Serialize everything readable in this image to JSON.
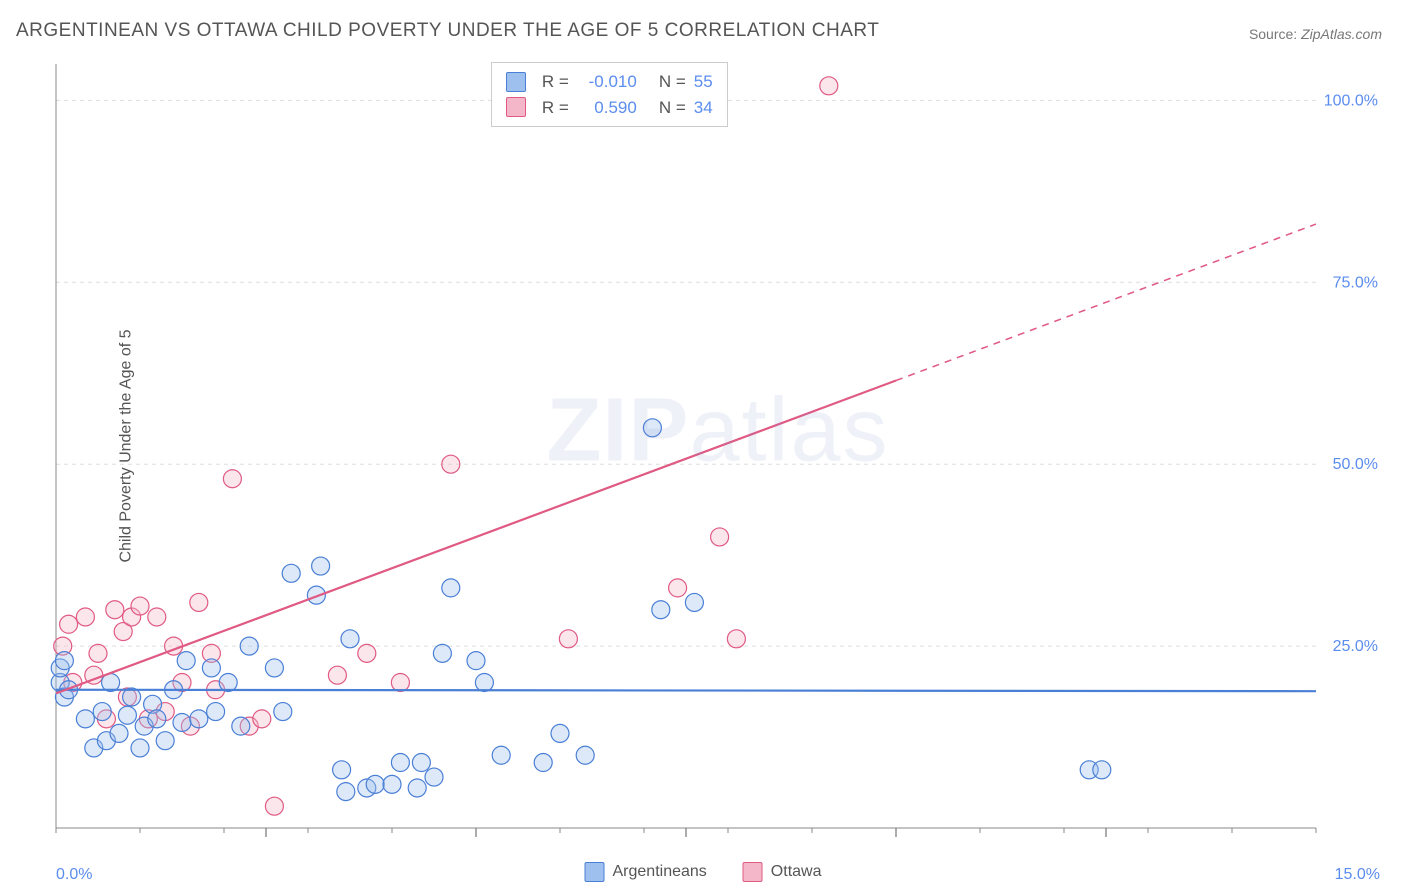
{
  "title": "ARGENTINEAN VS OTTAWA CHILD POVERTY UNDER THE AGE OF 5 CORRELATION CHART",
  "source_prefix": "Source:",
  "source_site": "ZipAtlas.com",
  "ylabel": "Child Poverty Under the Age of 5",
  "watermark": {
    "bold": "ZIP",
    "rest": "atlas"
  },
  "chart": {
    "type": "scatter",
    "xlim": [
      0,
      15
    ],
    "ylim": [
      0,
      105
    ],
    "x_axis_labels": {
      "min": "0.0%",
      "max": "15.0%",
      "color": "#5b8def"
    },
    "y_ticks": [
      25,
      50,
      75,
      100
    ],
    "y_tick_labels": [
      "25.0%",
      "50.0%",
      "75.0%",
      "100.0%"
    ],
    "y_tick_color": "#5b8def",
    "x_minor_ticks": [
      0,
      1,
      2,
      3,
      4,
      5,
      6,
      7,
      8,
      9,
      10,
      11,
      12,
      13,
      14,
      15
    ],
    "x_major_ticks": [
      2.5,
      5.0,
      7.5,
      10.0,
      12.5
    ],
    "grid_color": "#dddddd",
    "axis_color": "#888888",
    "background_color": "#ffffff",
    "marker_radius": 9,
    "marker_fill_opacity": 0.35,
    "marker_stroke_width": 1.2,
    "line_width": 2.2,
    "series": [
      {
        "key": "argentineans",
        "label": "Argentineans",
        "color_stroke": "#4a7fd6",
        "color_fill": "#9ec0ef",
        "R": "-0.010",
        "N": "55",
        "trend": {
          "y_start": 19.0,
          "y_end": 18.8,
          "x_start": 0,
          "x_end": 15,
          "dash_from_x": 15
        },
        "points": [
          [
            0.05,
            20
          ],
          [
            0.05,
            22
          ],
          [
            0.1,
            18
          ],
          [
            0.1,
            23
          ],
          [
            0.15,
            19
          ],
          [
            0.35,
            15
          ],
          [
            0.45,
            11
          ],
          [
            0.55,
            16
          ],
          [
            0.6,
            12
          ],
          [
            0.65,
            20
          ],
          [
            0.75,
            13
          ],
          [
            0.85,
            15.5
          ],
          [
            0.9,
            18
          ],
          [
            1.0,
            11
          ],
          [
            1.05,
            14
          ],
          [
            1.15,
            17
          ],
          [
            1.2,
            15
          ],
          [
            1.3,
            12
          ],
          [
            1.4,
            19
          ],
          [
            1.5,
            14.5
          ],
          [
            1.55,
            23
          ],
          [
            1.7,
            15
          ],
          [
            1.85,
            22
          ],
          [
            1.9,
            16
          ],
          [
            2.05,
            20
          ],
          [
            2.2,
            14
          ],
          [
            2.3,
            25
          ],
          [
            2.6,
            22
          ],
          [
            2.7,
            16
          ],
          [
            2.8,
            35
          ],
          [
            3.1,
            32
          ],
          [
            3.15,
            36
          ],
          [
            3.4,
            8
          ],
          [
            3.45,
            5
          ],
          [
            3.5,
            26
          ],
          [
            3.7,
            5.5
          ],
          [
            3.8,
            6
          ],
          [
            4.0,
            6
          ],
          [
            4.1,
            9
          ],
          [
            4.3,
            5.5
          ],
          [
            4.35,
            9
          ],
          [
            4.5,
            7
          ],
          [
            4.6,
            24
          ],
          [
            4.7,
            33
          ],
          [
            5.0,
            23
          ],
          [
            5.1,
            20
          ],
          [
            5.3,
            10
          ],
          [
            5.8,
            9
          ],
          [
            6.0,
            13
          ],
          [
            6.3,
            10
          ],
          [
            7.1,
            55
          ],
          [
            7.2,
            30
          ],
          [
            7.6,
            31
          ],
          [
            12.3,
            8
          ],
          [
            12.45,
            8
          ]
        ]
      },
      {
        "key": "ottawa",
        "label": "Ottawa",
        "color_stroke": "#e05a84",
        "color_fill": "#f3b7c9",
        "R": "0.590",
        "N": "34",
        "trend": {
          "y_start": 18.5,
          "y_end": 83.0,
          "x_start": 0,
          "x_end": 15,
          "dash_from_x": 10.0
        },
        "points": [
          [
            0.08,
            25
          ],
          [
            0.15,
            28
          ],
          [
            0.2,
            20
          ],
          [
            0.35,
            29
          ],
          [
            0.45,
            21
          ],
          [
            0.5,
            24
          ],
          [
            0.6,
            15
          ],
          [
            0.7,
            30
          ],
          [
            0.8,
            27
          ],
          [
            0.85,
            18
          ],
          [
            0.9,
            29
          ],
          [
            1.0,
            30.5
          ],
          [
            1.1,
            15
          ],
          [
            1.2,
            29
          ],
          [
            1.3,
            16
          ],
          [
            1.4,
            25
          ],
          [
            1.5,
            20
          ],
          [
            1.6,
            14
          ],
          [
            1.7,
            31
          ],
          [
            1.85,
            24
          ],
          [
            1.9,
            19
          ],
          [
            2.1,
            48
          ],
          [
            2.3,
            14
          ],
          [
            2.45,
            15
          ],
          [
            2.6,
            3
          ],
          [
            3.35,
            21
          ],
          [
            3.7,
            24
          ],
          [
            4.1,
            20
          ],
          [
            4.7,
            50
          ],
          [
            6.1,
            26
          ],
          [
            7.4,
            33
          ],
          [
            7.9,
            40
          ],
          [
            8.1,
            26
          ],
          [
            9.2,
            102
          ]
        ]
      }
    ]
  },
  "top_legend": {
    "R_label": "R =",
    "N_label": "N ="
  },
  "bottom_legend": {
    "items": [
      "Argentineans",
      "Ottawa"
    ]
  }
}
